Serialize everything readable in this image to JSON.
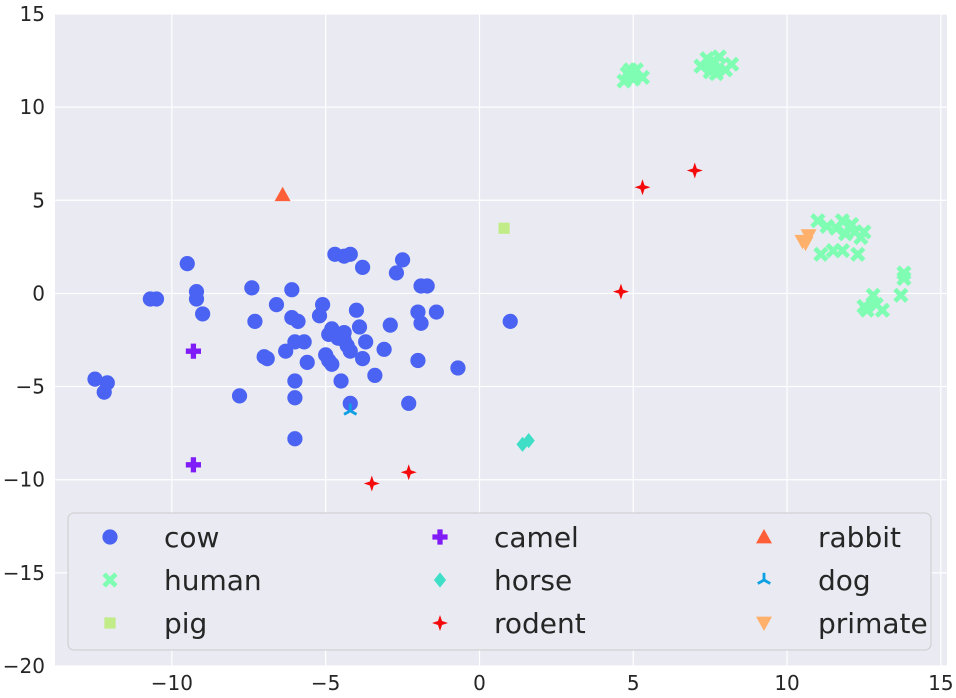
{
  "chart_data": {
    "type": "scatter",
    "title": "",
    "xlabel": "",
    "ylabel": "",
    "xlim": [
      -13.8,
      15.2
    ],
    "ylim": [
      -20,
      15
    ],
    "xticks": [
      -10,
      -5,
      0,
      5,
      10,
      15
    ],
    "yticks": [
      15,
      10,
      5,
      0,
      -5,
      -10,
      -15,
      -20
    ],
    "xtick_labels": [
      "−10",
      "−5",
      "0",
      "5",
      "10",
      "15"
    ],
    "ytick_labels": [
      "15",
      "10",
      "5",
      "0",
      "−5",
      "−10",
      "−15",
      "−20"
    ],
    "grid": true,
    "legend_position": "bottom",
    "legend_columns": 3,
    "series": [
      {
        "name": "cow",
        "color": "#4a63f2",
        "marker": "circle",
        "points": [
          [
            -12.5,
            -4.6
          ],
          [
            -12.1,
            -4.8
          ],
          [
            -12.2,
            -5.3
          ],
          [
            -10.7,
            -0.3
          ],
          [
            -10.5,
            -0.3
          ],
          [
            -9.5,
            1.6
          ],
          [
            -9.2,
            0.1
          ],
          [
            -9.2,
            -0.3
          ],
          [
            -9.0,
            -1.1
          ],
          [
            -7.8,
            -5.5
          ],
          [
            -7.4,
            0.3
          ],
          [
            -7.3,
            -1.5
          ],
          [
            -7.0,
            -3.4
          ],
          [
            -6.9,
            -3.5
          ],
          [
            -6.6,
            -0.6
          ],
          [
            -6.3,
            -3.1
          ],
          [
            -6.1,
            0.2
          ],
          [
            -6.1,
            -1.3
          ],
          [
            -6.0,
            -2.6
          ],
          [
            -6.0,
            -4.7
          ],
          [
            -6.0,
            -5.6
          ],
          [
            -6.0,
            -7.8
          ],
          [
            -5.9,
            -1.5
          ],
          [
            -5.7,
            -2.6
          ],
          [
            -5.6,
            -3.7
          ],
          [
            -5.2,
            -1.2
          ],
          [
            -5.1,
            -0.6
          ],
          [
            -5.0,
            -3.3
          ],
          [
            -4.9,
            -3.6
          ],
          [
            -4.9,
            -2.2
          ],
          [
            -4.8,
            -3.8
          ],
          [
            -4.8,
            -1.9
          ],
          [
            -4.7,
            2.1
          ],
          [
            -4.6,
            -2.4
          ],
          [
            -4.5,
            -4.7
          ],
          [
            -4.4,
            -2.1
          ],
          [
            -4.4,
            -2.5
          ],
          [
            -4.4,
            2.0
          ],
          [
            -4.3,
            -2.8
          ],
          [
            -4.2,
            2.1
          ],
          [
            -4.2,
            -3.1
          ],
          [
            -4.2,
            -5.9
          ],
          [
            -4.0,
            -0.9
          ],
          [
            -3.9,
            -1.8
          ],
          [
            -3.8,
            -3.5
          ],
          [
            -3.8,
            1.4
          ],
          [
            -3.7,
            -2.6
          ],
          [
            -3.4,
            -4.4
          ],
          [
            -3.1,
            -3.0
          ],
          [
            -2.9,
            -1.7
          ],
          [
            -2.7,
            1.1
          ],
          [
            -2.5,
            1.8
          ],
          [
            -2.3,
            -5.9
          ],
          [
            -2.0,
            -1.0
          ],
          [
            -2.0,
            -3.6
          ],
          [
            -1.9,
            -1.6
          ],
          [
            -1.9,
            0.4
          ],
          [
            -1.7,
            0.4
          ],
          [
            -1.4,
            -1.0
          ],
          [
            -0.7,
            -4.0
          ],
          [
            1.0,
            -1.5
          ]
        ]
      },
      {
        "name": "human",
        "color": "#7ffdb2",
        "marker": "x",
        "points": [
          [
            4.7,
            11.4
          ],
          [
            4.8,
            11.8
          ],
          [
            4.9,
            12.0
          ],
          [
            5.0,
            11.5
          ],
          [
            5.1,
            12.0
          ],
          [
            5.3,
            11.6
          ],
          [
            5.0,
            11.7
          ],
          [
            7.2,
            12.2
          ],
          [
            7.4,
            12.6
          ],
          [
            7.5,
            11.9
          ],
          [
            7.6,
            12.3
          ],
          [
            7.7,
            11.8
          ],
          [
            7.8,
            12.7
          ],
          [
            8.0,
            12.0
          ],
          [
            8.2,
            12.3
          ],
          [
            7.6,
            12.5
          ],
          [
            11.0,
            3.9
          ],
          [
            11.1,
            2.1
          ],
          [
            11.3,
            3.6
          ],
          [
            11.5,
            2.3
          ],
          [
            11.6,
            3.5
          ],
          [
            11.8,
            3.9
          ],
          [
            11.8,
            2.3
          ],
          [
            11.9,
            3.2
          ],
          [
            12.1,
            3.7
          ],
          [
            12.2,
            3.3
          ],
          [
            12.3,
            2.1
          ],
          [
            12.4,
            3.0
          ],
          [
            12.5,
            3.3
          ],
          [
            12.5,
            -0.7
          ],
          [
            12.6,
            -0.9
          ],
          [
            12.8,
            -0.1
          ],
          [
            12.9,
            -0.6
          ],
          [
            13.1,
            -0.9
          ],
          [
            13.7,
            -0.1
          ],
          [
            13.8,
            0.8
          ],
          [
            13.8,
            1.1
          ]
        ]
      },
      {
        "name": "pig",
        "color": "#c2ec88",
        "marker": "square",
        "points": [
          [
            0.8,
            3.5
          ]
        ]
      },
      {
        "name": "camel",
        "color": "#7f1cf7",
        "marker": "plus",
        "points": [
          [
            -9.3,
            -3.1
          ],
          [
            -9.3,
            -9.2
          ]
        ]
      },
      {
        "name": "horse",
        "color": "#3fdfc7",
        "marker": "diamond",
        "points": [
          [
            1.4,
            -8.1
          ],
          [
            1.6,
            -7.9
          ]
        ]
      },
      {
        "name": "rodent",
        "color": "#f40a0a",
        "marker": "star4",
        "points": [
          [
            -3.5,
            -10.2
          ],
          [
            -2.3,
            -9.6
          ],
          [
            4.6,
            0.1
          ],
          [
            5.3,
            5.7
          ],
          [
            7.0,
            6.6
          ]
        ]
      },
      {
        "name": "rabbit",
        "color": "#ff5f38",
        "marker": "triangle-up",
        "points": [
          [
            -6.4,
            5.3
          ]
        ]
      },
      {
        "name": "dog",
        "color": "#0da0e3",
        "marker": "tri-star",
        "points": [
          [
            -4.2,
            -6.3
          ]
        ]
      },
      {
        "name": "primate",
        "color": "#ffb06b",
        "marker": "triangle-down",
        "points": [
          [
            10.5,
            2.8
          ],
          [
            10.7,
            3.1
          ],
          [
            10.6,
            2.7
          ]
        ]
      }
    ]
  },
  "style": {
    "plot_background": "#eaeaf2",
    "grid_color": "#ffffff",
    "legend_background": "#eaeaf2",
    "legend_border": "#cccccc"
  }
}
